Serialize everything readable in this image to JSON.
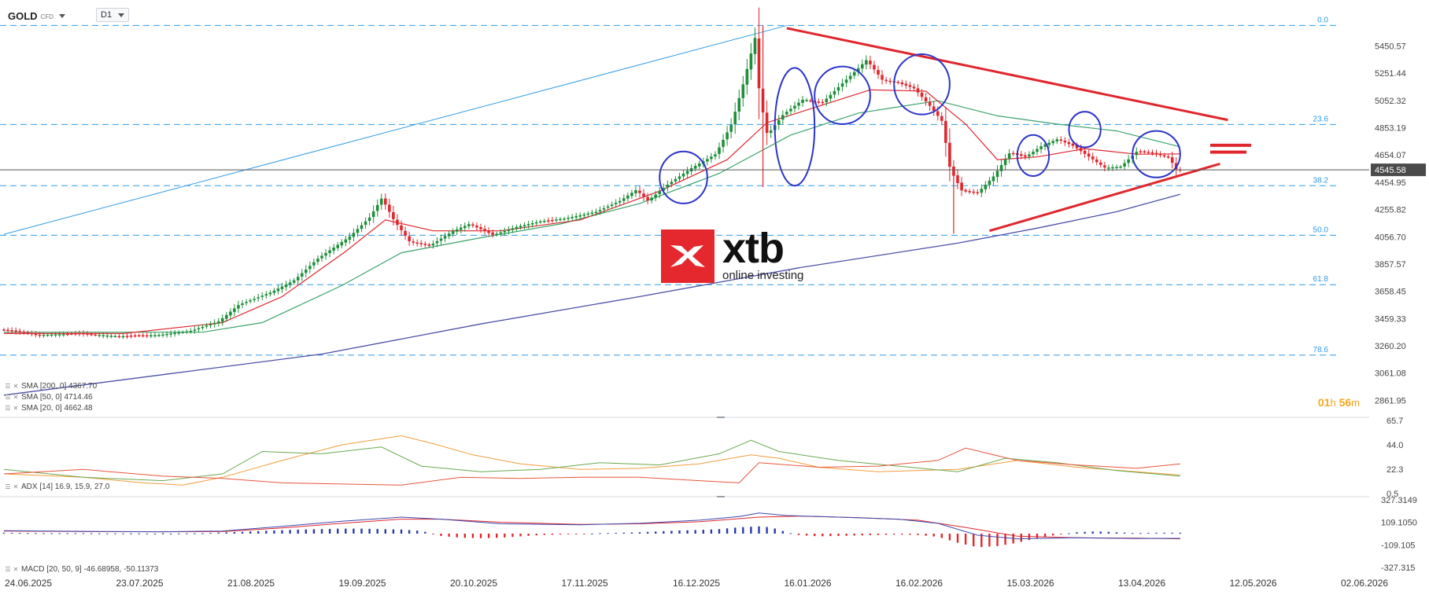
{
  "header": {
    "symbol": "GOLD",
    "symbol_type": "CFD",
    "timeframe": "D1"
  },
  "timer": {
    "hours": "01",
    "h_unit": "h",
    "minutes": "56",
    "m_unit": "m"
  },
  "logo": {
    "brand": "xtb",
    "tagline": "online investing"
  },
  "indicators": {
    "sma200": "SMA [200, 0] 4367.70",
    "sma50": "SMA [50, 0] 4714.46",
    "sma20": "SMA [20, 0] 4662.48",
    "adx": "ADX [14] 16.9, 15.9, 27.0",
    "macd": "MACD [20, 50, 9] -46.68958, -50.11373"
  },
  "colors": {
    "bull": "#1f8f3a",
    "bear": "#e0262d",
    "sma20": "#e0262d",
    "sma50": "#3aa36a",
    "sma200": "#4b4fa6",
    "fib": "#2f9be6",
    "trend": "#e0262d",
    "circle": "#2c35c8",
    "last_price_bg": "#4a4a4a"
  },
  "chart_data": {
    "type": "candlestick",
    "instrument": "GOLD",
    "timeframe": "D1",
    "x_labels": [
      "24.06.2025",
      "23.07.2025",
      "21.08.2025",
      "19.09.2025",
      "20.10.2025",
      "17.11.2025",
      "16.12.2025",
      "16.01.2026",
      "16.02.2026",
      "15.03.2026",
      "13.04.2026",
      "12.05.2026",
      "02.06.2026"
    ],
    "y_ticks": [
      "5450.57",
      "5251.44",
      "5052.32",
      "4853.19",
      "4654.07",
      "4454.95",
      "4255.82",
      "4056.70",
      "3857.57",
      "3658.45",
      "3459.33",
      "3260.20",
      "3061.08",
      "2861.95"
    ],
    "ylim": [
      2830,
      5700
    ],
    "last_price": "4545.58",
    "fib_levels": [
      {
        "label": "0.0",
        "price": 5600
      },
      {
        "label": "23.6",
        "price": 4877
      },
      {
        "label": "38.2",
        "price": 4430
      },
      {
        "label": "50.0",
        "price": 4068
      },
      {
        "label": "61.8",
        "price": 3707
      },
      {
        "label": "78.6",
        "price": 3192
      }
    ],
    "price_path": [
      [
        0,
        3380
      ],
      [
        10,
        3340
      ],
      [
        20,
        3350
      ],
      [
        30,
        3330
      ],
      [
        40,
        3340
      ],
      [
        48,
        3370
      ],
      [
        55,
        3440
      ],
      [
        60,
        3560
      ],
      [
        68,
        3650
      ],
      [
        74,
        3740
      ],
      [
        80,
        3900
      ],
      [
        88,
        4060
      ],
      [
        93,
        4200
      ],
      [
        96,
        4340
      ],
      [
        99,
        4180
      ],
      [
        103,
        4020
      ],
      [
        108,
        3990
      ],
      [
        114,
        4100
      ],
      [
        118,
        4150
      ],
      [
        124,
        4070
      ],
      [
        130,
        4130
      ],
      [
        136,
        4170
      ],
      [
        142,
        4190
      ],
      [
        150,
        4240
      ],
      [
        156,
        4320
      ],
      [
        160,
        4400
      ],
      [
        163,
        4320
      ],
      [
        168,
        4440
      ],
      [
        174,
        4560
      ],
      [
        180,
        4660
      ],
      [
        184,
        4880
      ],
      [
        187,
        5180
      ],
      [
        190,
        5520
      ],
      [
        191,
        5100
      ],
      [
        193,
        4800
      ],
      [
        197,
        4950
      ],
      [
        202,
        5060
      ],
      [
        207,
        5040
      ],
      [
        212,
        5180
      ],
      [
        216,
        5290
      ],
      [
        218,
        5350
      ],
      [
        222,
        5200
      ],
      [
        226,
        5180
      ],
      [
        230,
        5140
      ],
      [
        234,
        5010
      ],
      [
        237,
        4900
      ],
      [
        239,
        4550
      ],
      [
        242,
        4390
      ],
      [
        246,
        4380
      ],
      [
        250,
        4500
      ],
      [
        254,
        4670
      ],
      [
        258,
        4640
      ],
      [
        262,
        4720
      ],
      [
        266,
        4770
      ],
      [
        270,
        4720
      ],
      [
        274,
        4640
      ],
      [
        278,
        4560
      ],
      [
        282,
        4570
      ],
      [
        286,
        4680
      ],
      [
        290,
        4670
      ],
      [
        294,
        4640
      ],
      [
        296,
        4545
      ]
    ],
    "sma20_path": [
      [
        0,
        3350
      ],
      [
        30,
        3350
      ],
      [
        55,
        3430
      ],
      [
        70,
        3620
      ],
      [
        86,
        3950
      ],
      [
        96,
        4180
      ],
      [
        108,
        4100
      ],
      [
        125,
        4100
      ],
      [
        145,
        4180
      ],
      [
        165,
        4390
      ],
      [
        182,
        4620
      ],
      [
        192,
        4890
      ],
      [
        205,
        5010
      ],
      [
        218,
        5130
      ],
      [
        232,
        5120
      ],
      [
        242,
        4880
      ],
      [
        250,
        4620
      ],
      [
        260,
        4640
      ],
      [
        272,
        4700
      ],
      [
        285,
        4660
      ],
      [
        296,
        4662
      ]
    ],
    "sma50_path": [
      [
        0,
        3360
      ],
      [
        50,
        3360
      ],
      [
        65,
        3430
      ],
      [
        85,
        3700
      ],
      [
        100,
        3940
      ],
      [
        120,
        4050
      ],
      [
        140,
        4150
      ],
      [
        160,
        4300
      ],
      [
        180,
        4520
      ],
      [
        198,
        4800
      ],
      [
        215,
        4960
      ],
      [
        235,
        5050
      ],
      [
        250,
        4940
      ],
      [
        265,
        4880
      ],
      [
        280,
        4830
      ],
      [
        296,
        4714
      ]
    ],
    "sma200_path": [
      [
        0,
        2900
      ],
      [
        40,
        3050
      ],
      [
        80,
        3200
      ],
      [
        120,
        3420
      ],
      [
        160,
        3620
      ],
      [
        200,
        3830
      ],
      [
        240,
        4010
      ],
      [
        260,
        4120
      ],
      [
        280,
        4240
      ],
      [
        296,
        4367
      ]
    ],
    "trend_upper": [
      [
        197,
        5580
      ],
      [
        308,
        4910
      ]
    ],
    "trend_lower": [
      [
        248,
        4100
      ],
      [
        306,
        4590
      ]
    ],
    "upper_fib_line": [
      [
        0,
        4075
      ],
      [
        197,
        5600
      ]
    ],
    "circles": [
      {
        "t": 171,
        "price": 4490,
        "rt": 6,
        "rp": 190
      },
      {
        "t": 199,
        "price": 4860,
        "rt": 5,
        "rp": 430
      },
      {
        "t": 211,
        "price": 5090,
        "rt": 7,
        "rp": 210
      },
      {
        "t": 231,
        "price": 5170,
        "rt": 7,
        "rp": 220
      },
      {
        "t": 259,
        "price": 4650,
        "rt": 4,
        "rp": 150
      },
      {
        "t": 272,
        "price": 4840,
        "rt": 4,
        "rp": 130
      },
      {
        "t": 290,
        "price": 4660,
        "rt": 6,
        "rp": 170
      }
    ],
    "adx": {
      "ylim": [
        0.5,
        65.7
      ],
      "y_ticks": [
        "65.7",
        "44.0",
        "22.3",
        "0.5"
      ],
      "adx_line": [
        [
          0,
          18
        ],
        [
          20,
          15
        ],
        [
          35,
          10
        ],
        [
          45,
          8
        ],
        [
          55,
          15
        ],
        [
          70,
          30
        ],
        [
          85,
          44
        ],
        [
          100,
          52
        ],
        [
          108,
          45
        ],
        [
          118,
          35
        ],
        [
          130,
          27
        ],
        [
          145,
          22
        ],
        [
          160,
          23
        ],
        [
          175,
          27
        ],
        [
          188,
          35
        ],
        [
          195,
          32
        ],
        [
          205,
          24
        ],
        [
          220,
          20
        ],
        [
          240,
          22
        ],
        [
          255,
          30
        ],
        [
          270,
          24
        ],
        [
          285,
          20
        ],
        [
          296,
          17
        ]
      ],
      "plus_di": [
        [
          0,
          22
        ],
        [
          20,
          15
        ],
        [
          40,
          12
        ],
        [
          55,
          18
        ],
        [
          65,
          38
        ],
        [
          80,
          36
        ],
        [
          95,
          42
        ],
        [
          105,
          25
        ],
        [
          120,
          20
        ],
        [
          135,
          22
        ],
        [
          150,
          28
        ],
        [
          165,
          26
        ],
        [
          180,
          36
        ],
        [
          188,
          48
        ],
        [
          195,
          38
        ],
        [
          210,
          30
        ],
        [
          225,
          25
        ],
        [
          240,
          20
        ],
        [
          252,
          32
        ],
        [
          265,
          28
        ],
        [
          280,
          21
        ],
        [
          296,
          16
        ]
      ],
      "minus_di": [
        [
          0,
          18
        ],
        [
          20,
          22
        ],
        [
          40,
          16
        ],
        [
          55,
          14
        ],
        [
          70,
          10
        ],
        [
          85,
          9
        ],
        [
          100,
          8
        ],
        [
          115,
          15
        ],
        [
          130,
          14
        ],
        [
          145,
          15
        ],
        [
          160,
          15
        ],
        [
          175,
          12
        ],
        [
          185,
          10
        ],
        [
          190,
          28
        ],
        [
          205,
          24
        ],
        [
          220,
          25
        ],
        [
          235,
          30
        ],
        [
          242,
          41
        ],
        [
          255,
          30
        ],
        [
          270,
          26
        ],
        [
          285,
          23
        ],
        [
          296,
          27
        ]
      ]
    },
    "macd": {
      "ylim": [
        -327.3149,
        327.3149
      ],
      "y_ticks": [
        "327.3149",
        "109.1050",
        "-109.105",
        "-327.315"
      ],
      "macd_line": [
        [
          0,
          28
        ],
        [
          20,
          22
        ],
        [
          40,
          18
        ],
        [
          55,
          25
        ],
        [
          70,
          70
        ],
        [
          85,
          120
        ],
        [
          100,
          160
        ],
        [
          110,
          140
        ],
        [
          125,
          95
        ],
        [
          145,
          85
        ],
        [
          160,
          100
        ],
        [
          175,
          130
        ],
        [
          185,
          165
        ],
        [
          190,
          200
        ],
        [
          197,
          175
        ],
        [
          210,
          160
        ],
        [
          225,
          140
        ],
        [
          235,
          100
        ],
        [
          245,
          -15
        ],
        [
          255,
          -50
        ],
        [
          270,
          -40
        ],
        [
          285,
          -48
        ],
        [
          296,
          -46
        ]
      ],
      "signal_line": [
        [
          0,
          24
        ],
        [
          20,
          20
        ],
        [
          40,
          18
        ],
        [
          55,
          20
        ],
        [
          70,
          55
        ],
        [
          85,
          100
        ],
        [
          100,
          140
        ],
        [
          110,
          140
        ],
        [
          125,
          110
        ],
        [
          145,
          90
        ],
        [
          160,
          95
        ],
        [
          175,
          115
        ],
        [
          190,
          160
        ],
        [
          200,
          170
        ],
        [
          215,
          155
        ],
        [
          230,
          130
        ],
        [
          242,
          60
        ],
        [
          255,
          -25
        ],
        [
          270,
          -40
        ],
        [
          285,
          -44
        ],
        [
          296,
          -50
        ]
      ],
      "histogram": [
        [
          0,
          4
        ],
        [
          5,
          3
        ],
        [
          10,
          2
        ],
        [
          15,
          2
        ],
        [
          20,
          2
        ],
        [
          25,
          1
        ],
        [
          30,
          1
        ],
        [
          35,
          1
        ],
        [
          40,
          0
        ],
        [
          45,
          1
        ],
        [
          50,
          2
        ],
        [
          55,
          5
        ],
        [
          60,
          8
        ],
        [
          65,
          12
        ],
        [
          70,
          15
        ],
        [
          75,
          18
        ],
        [
          80,
          20
        ],
        [
          85,
          22
        ],
        [
          90,
          22
        ],
        [
          95,
          20
        ],
        [
          100,
          18
        ],
        [
          105,
          12
        ],
        [
          110,
          -10
        ],
        [
          115,
          -18
        ],
        [
          120,
          -20
        ],
        [
          125,
          -18
        ],
        [
          130,
          -12
        ],
        [
          135,
          -6
        ],
        [
          140,
          -4
        ],
        [
          145,
          -2
        ],
        [
          150,
          2
        ],
        [
          155,
          4
        ],
        [
          160,
          6
        ],
        [
          165,
          10
        ],
        [
          170,
          14
        ],
        [
          175,
          16
        ],
        [
          180,
          20
        ],
        [
          185,
          28
        ],
        [
          190,
          32
        ],
        [
          193,
          28
        ],
        [
          197,
          6
        ],
        [
          200,
          -6
        ],
        [
          205,
          -12
        ],
        [
          210,
          -10
        ],
        [
          215,
          -8
        ],
        [
          220,
          -6
        ],
        [
          225,
          -4
        ],
        [
          230,
          -6
        ],
        [
          235,
          -14
        ],
        [
          240,
          -40
        ],
        [
          245,
          -60
        ],
        [
          250,
          -55
        ],
        [
          255,
          -40
        ],
        [
          260,
          -20
        ],
        [
          265,
          -5
        ],
        [
          270,
          6
        ],
        [
          275,
          10
        ],
        [
          280,
          6
        ],
        [
          285,
          2
        ],
        [
          290,
          4
        ],
        [
          296,
          4
        ]
      ]
    }
  }
}
